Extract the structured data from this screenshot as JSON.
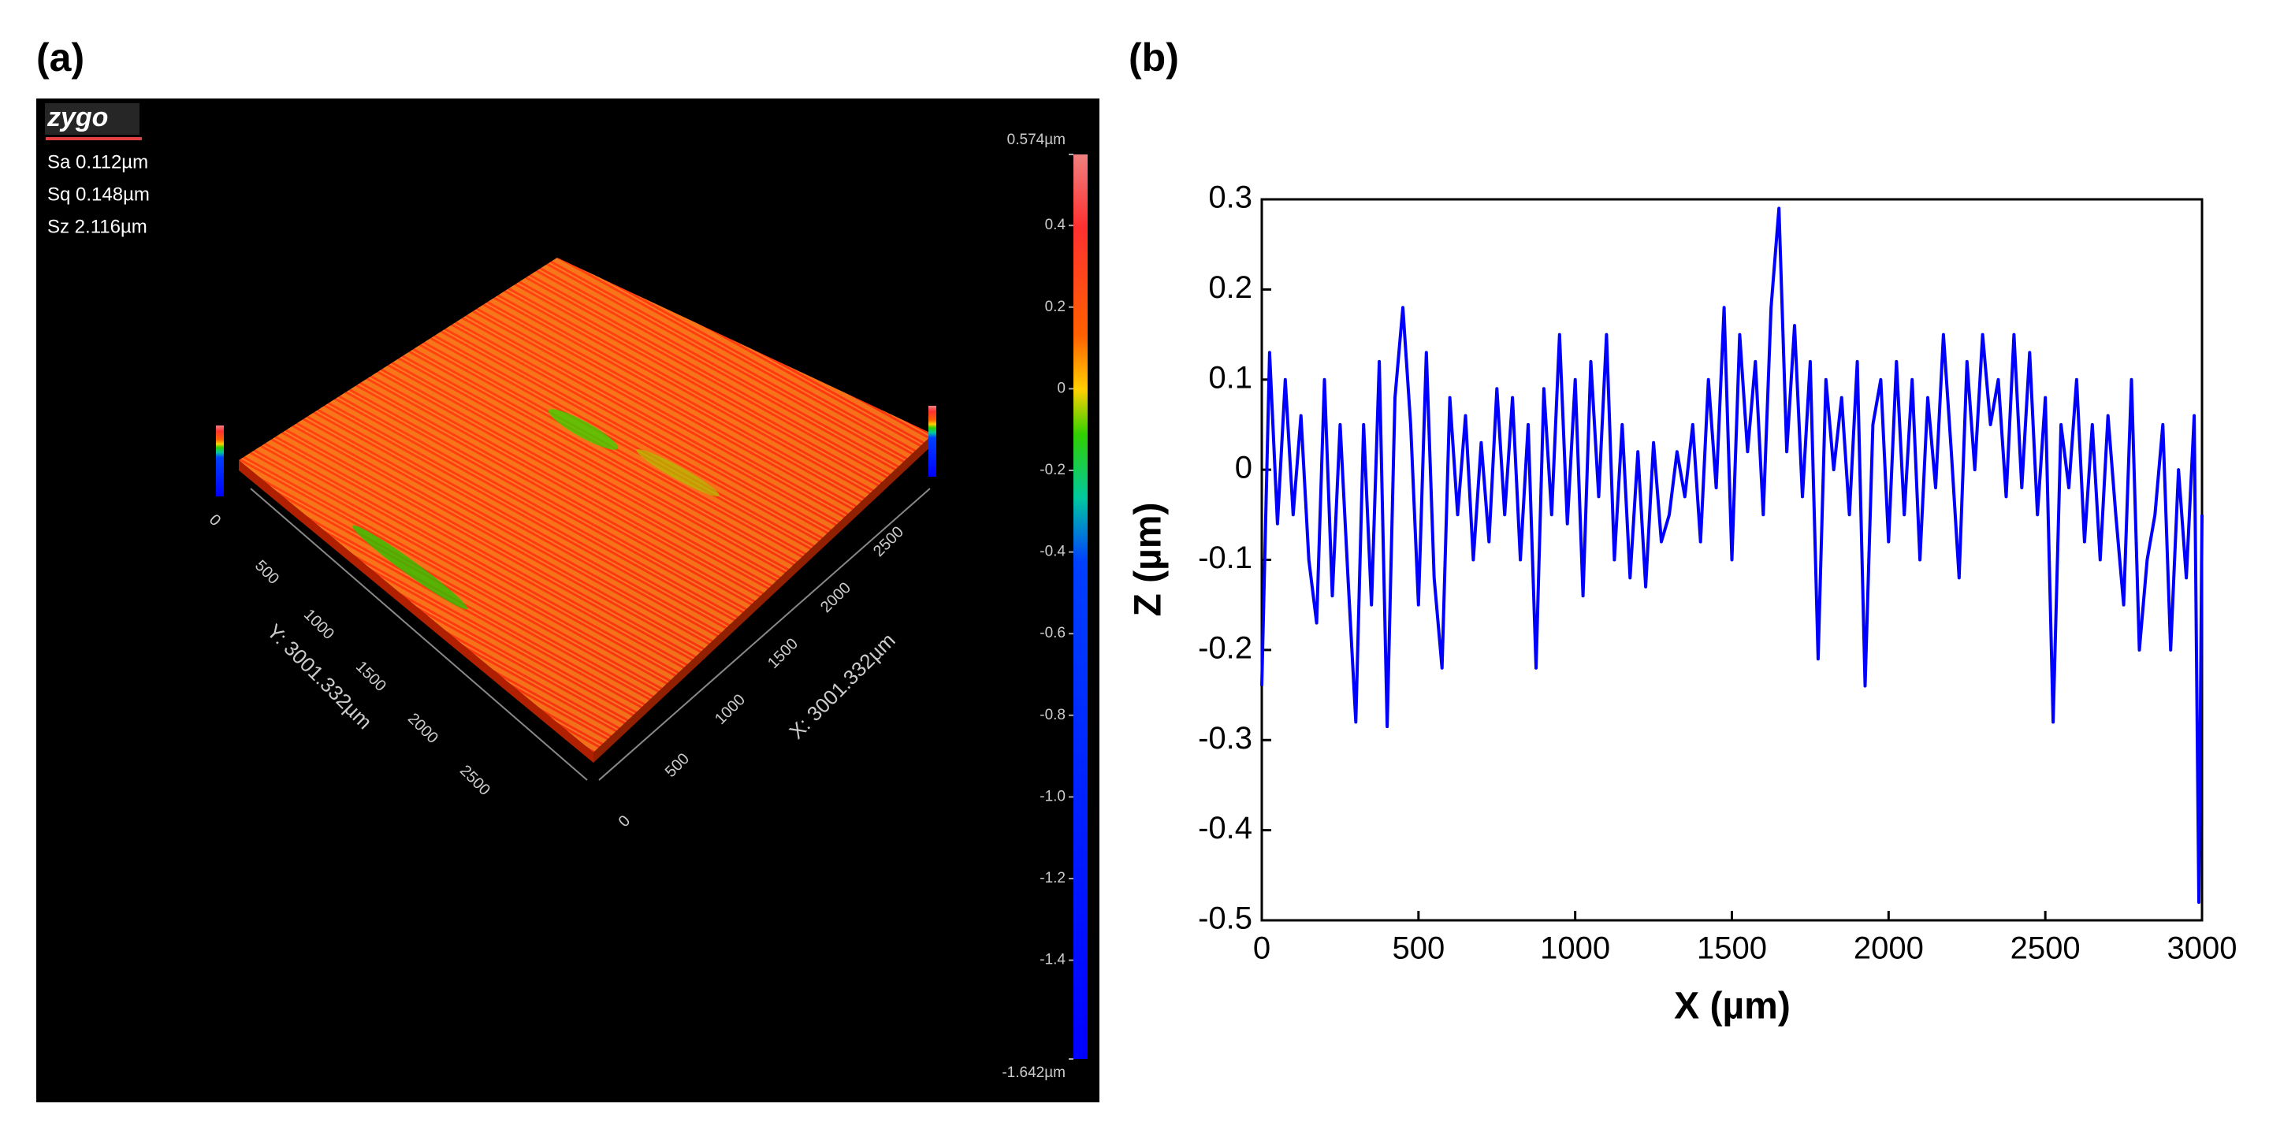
{
  "panel_a": {
    "label": "(a)",
    "logo": "zygo",
    "stats": [
      "Sa 0.112µm",
      "Sq 0.148µm",
      "Sz 2.116µm"
    ],
    "colorbar": {
      "lim": [
        -1.642,
        0.574
      ],
      "ticks": [
        {
          "value": 0.574,
          "label": "0.574µm"
        },
        0.4,
        0.2,
        0,
        -0.2,
        -0.4,
        -0.6,
        -0.8,
        {
          "value": -1.0,
          "label": "-1.0"
        },
        -1.2,
        -1.4,
        {
          "value": -1.642,
          "label": "-1.642µm"
        }
      ]
    },
    "y_axis": {
      "title": "Y: 3001.332µm",
      "ticks": [
        0,
        500,
        1000,
        1500,
        2000,
        2500
      ]
    },
    "x_axis": {
      "title": "X: 3001.332µm",
      "ticks": [
        0,
        500,
        1000,
        1500,
        2000,
        2500
      ]
    }
  },
  "chart_data": {
    "type": "line",
    "label": "(b)",
    "x_label": "X (µm)",
    "y_label": "Z (µm)",
    "xlim": [
      0,
      3000
    ],
    "ylim": [
      -0.5,
      0.3
    ],
    "xticks": [
      0,
      500,
      1000,
      1500,
      2000,
      2500,
      3000
    ],
    "yticks": [
      0.3,
      0.2,
      0.1,
      0,
      -0.1,
      -0.2,
      -0.3,
      -0.4,
      -0.5
    ],
    "x": [
      0,
      25,
      50,
      75,
      100,
      125,
      150,
      175,
      200,
      225,
      250,
      275,
      300,
      325,
      350,
      375,
      400,
      425,
      450,
      475,
      500,
      525,
      550,
      575,
      600,
      625,
      650,
      675,
      700,
      725,
      750,
      775,
      800,
      825,
      850,
      875,
      900,
      925,
      950,
      975,
      1000,
      1025,
      1050,
      1075,
      1100,
      1125,
      1150,
      1175,
      1200,
      1225,
      1250,
      1275,
      1300,
      1325,
      1350,
      1375,
      1400,
      1425,
      1450,
      1475,
      1500,
      1525,
      1550,
      1575,
      1600,
      1625,
      1650,
      1675,
      1700,
      1725,
      1750,
      1775,
      1800,
      1825,
      1850,
      1875,
      1900,
      1925,
      1950,
      1975,
      2000,
      2025,
      2050,
      2075,
      2100,
      2125,
      2150,
      2175,
      2200,
      2225,
      2250,
      2275,
      2300,
      2325,
      2350,
      2375,
      2400,
      2425,
      2450,
      2475,
      2500,
      2525,
      2550,
      2575,
      2600,
      2625,
      2650,
      2675,
      2700,
      2725,
      2750,
      2775,
      2800,
      2825,
      2850,
      2875,
      2900,
      2925,
      2950,
      2975,
      2990,
      3000
    ],
    "series": [
      {
        "color": "#0000ff",
        "values": [
          -0.24,
          0.13,
          -0.06,
          0.1,
          -0.05,
          0.06,
          -0.1,
          -0.17,
          0.1,
          -0.14,
          0.05,
          -0.12,
          -0.28,
          0.05,
          -0.15,
          0.12,
          -0.285,
          0.08,
          0.18,
          0.05,
          -0.15,
          0.13,
          -0.12,
          -0.22,
          0.08,
          -0.05,
          0.06,
          -0.1,
          0.03,
          -0.08,
          0.09,
          -0.05,
          0.08,
          -0.1,
          0.05,
          -0.22,
          0.09,
          -0.05,
          0.15,
          -0.06,
          0.1,
          -0.14,
          0.12,
          -0.03,
          0.15,
          -0.1,
          0.05,
          -0.12,
          0.02,
          -0.13,
          0.03,
          -0.08,
          -0.05,
          0.02,
          -0.03,
          0.05,
          -0.08,
          0.1,
          -0.02,
          0.18,
          -0.1,
          0.15,
          0.02,
          0.12,
          -0.05,
          0.18,
          0.29,
          0.02,
          0.16,
          -0.03,
          0.12,
          -0.21,
          0.1,
          0,
          0.08,
          -0.05,
          0.12,
          -0.24,
          0.05,
          0.1,
          -0.08,
          0.12,
          -0.05,
          0.1,
          -0.1,
          0.08,
          -0.02,
          0.15,
          0.02,
          -0.12,
          0.12,
          0,
          0.15,
          0.05,
          0.1,
          -0.03,
          0.15,
          -0.02,
          0.13,
          -0.05,
          0.08,
          -0.28,
          0.05,
          -0.02,
          0.1,
          -0.08,
          0.05,
          -0.1,
          0.06,
          -0.05,
          -0.15,
          0.1,
          -0.2,
          -0.1,
          -0.05,
          0.05,
          -0.2,
          0,
          -0.12,
          0.06,
          -0.48,
          -0.05
        ]
      }
    ]
  }
}
